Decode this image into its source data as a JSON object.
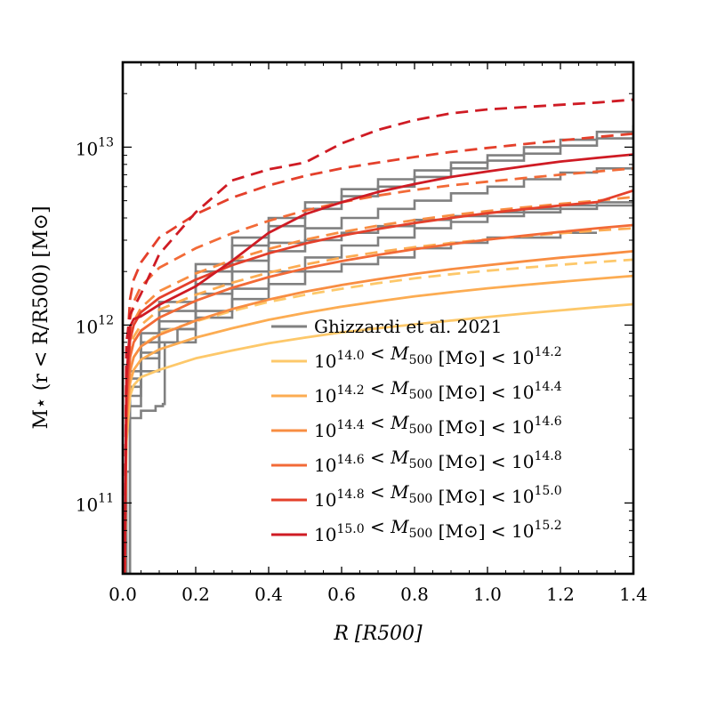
{
  "chart_data": {
    "type": "line",
    "title": "",
    "xlabel": "R [R500]",
    "ylabel": "M⋆ (r < R/R500) [M⊙]",
    "xlim": [
      0.0,
      1.4
    ],
    "ylim": [
      40000000000.0,
      30000000000000.0
    ],
    "yscale": "log",
    "legend_position": "lower-right",
    "x_ticks": [
      "0.0",
      "0.2",
      "0.4",
      "0.6",
      "0.8",
      "1.0",
      "1.2",
      "1.4"
    ],
    "y_ticks": [
      {
        "base": "10",
        "exp": "11",
        "value": 100000000000.0
      },
      {
        "base": "10",
        "exp": "12",
        "value": 1000000000000.0
      },
      {
        "base": "10",
        "exp": "13",
        "value": 10000000000000.0
      }
    ],
    "legend": [
      {
        "label": "Ghizzardi et al. 2021",
        "color": "#808080"
      },
      {
        "label": "10^14.0 < M500 [M⊙] < 10^14.2",
        "color": "#fdc86a"
      },
      {
        "label": "10^14.2 < M500 [M⊙] < 10^14.4",
        "color": "#fcac52"
      },
      {
        "label": "10^14.4 < M500 [M⊙] < 10^14.6",
        "color": "#f88d42"
      },
      {
        "label": "10^14.6 < M500 [M⊙] < 10^14.8",
        "color": "#f26a37"
      },
      {
        "label": "10^14.8 < M500 [M⊙] < 10^15.0",
        "color": "#e4402b"
      },
      {
        "label": "10^15.0 < M500 [M⊙] < 10^15.2",
        "color": "#cf1b24"
      }
    ],
    "x_grid": [
      0.005,
      0.01,
      0.02,
      0.03,
      0.05,
      0.1,
      0.2,
      0.3,
      0.4,
      0.5,
      0.6,
      0.7,
      0.8,
      0.9,
      1.0,
      1.1,
      1.2,
      1.3,
      1.4
    ],
    "series": [
      {
        "name": "10^14.0 < M500 < 10^14.2 (solid)",
        "color": "#fdc86a",
        "style": "solid",
        "values": [
          40000000000.0,
          220000000000.0,
          400000000000.0,
          460000000000.0,
          510000000000.0,
          560000000000.0,
          650000000000.0,
          720000000000.0,
          790000000000.0,
          850000000000.0,
          910000000000.0,
          960000000000.0,
          1010000000000.0,
          1060000000000.0,
          1110000000000.0,
          1160000000000.0,
          1210000000000.0,
          1260000000000.0,
          1310000000000.0
        ]
      },
      {
        "name": "10^14.0 < M500 < 10^14.2 (dashed)",
        "color": "#fdc86a",
        "style": "dashed",
        "values": [
          40000000000.0,
          300000000000.0,
          560000000000.0,
          660000000000.0,
          760000000000.0,
          900000000000.0,
          1050000000000.0,
          1200000000000.0,
          1350000000000.0,
          1480000000000.0,
          1600000000000.0,
          1720000000000.0,
          1830000000000.0,
          1930000000000.0,
          2020000000000.0,
          2100000000000.0,
          2180000000000.0,
          2260000000000.0,
          2330000000000.0
        ]
      },
      {
        "name": "10^14.2 < M500 < 10^14.4 (solid)",
        "color": "#fcac52",
        "style": "solid",
        "values": [
          40000000000.0,
          250000000000.0,
          470000000000.0,
          560000000000.0,
          640000000000.0,
          730000000000.0,
          850000000000.0,
          960000000000.0,
          1070000000000.0,
          1170000000000.0,
          1270000000000.0,
          1360000000000.0,
          1450000000000.0,
          1530000000000.0,
          1610000000000.0,
          1680000000000.0,
          1750000000000.0,
          1820000000000.0,
          1890000000000.0
        ]
      },
      {
        "name": "10^14.2 < M500 < 10^14.4 (dashed)",
        "color": "#fcac52",
        "style": "dashed",
        "values": [
          40000000000.0,
          360000000000.0,
          720000000000.0,
          860000000000.0,
          1000000000000.0,
          1220000000000.0,
          1480000000000.0,
          1730000000000.0,
          1970000000000.0,
          2190000000000.0,
          2390000000000.0,
          2570000000000.0,
          2740000000000.0,
          2890000000000.0,
          3030000000000.0,
          3160000000000.0,
          3280000000000.0,
          3400000000000.0,
          3500000000000.0
        ]
      },
      {
        "name": "10^14.4 < M500 < 10^14.6 (solid)",
        "color": "#f88d42",
        "style": "solid",
        "values": [
          40000000000.0,
          280000000000.0,
          550000000000.0,
          660000000000.0,
          760000000000.0,
          880000000000.0,
          1060000000000.0,
          1230000000000.0,
          1390000000000.0,
          1540000000000.0,
          1680000000000.0,
          1810000000000.0,
          1940000000000.0,
          2060000000000.0,
          2170000000000.0,
          2280000000000.0,
          2390000000000.0,
          2490000000000.0,
          2600000000000.0
        ]
      },
      {
        "name": "10^14.4 < M500 < 10^14.6 (dashed)",
        "color": "#f88d42",
        "style": "dashed",
        "values": [
          40000000000.0,
          420000000000.0,
          860000000000.0,
          1050000000000.0,
          1250000000000.0,
          1550000000000.0,
          1950000000000.0,
          2320000000000.0,
          2680000000000.0,
          3020000000000.0,
          3330000000000.0,
          3620000000000.0,
          3890000000000.0,
          4140000000000.0,
          4370000000000.0,
          4590000000000.0,
          4800000000000.0,
          5000000000000.0,
          5250000000000.0
        ]
      },
      {
        "name": "10^14.6 < M500 < 10^14.8 (solid)",
        "color": "#f26a37",
        "style": "solid",
        "values": [
          40000000000.0,
          320000000000.0,
          660000000000.0,
          800000000000.0,
          930000000000.0,
          1100000000000.0,
          1370000000000.0,
          1620000000000.0,
          1860000000000.0,
          2080000000000.0,
          2290000000000.0,
          2480000000000.0,
          2670000000000.0,
          2850000000000.0,
          3020000000000.0,
          3180000000000.0,
          3340000000000.0,
          3500000000000.0,
          3650000000000.0
        ]
      },
      {
        "name": "10^14.6 < M500 < 10^14.8 (dashed)",
        "color": "#f26a37",
        "style": "dashed",
        "values": [
          40000000000.0,
          520000000000.0,
          1080000000000.0,
          1350000000000.0,
          1650000000000.0,
          2100000000000.0,
          2700000000000.0,
          3280000000000.0,
          3850000000000.0,
          4400000000000.0,
          4900000000000.0,
          5350000000000.0,
          5750000000000.0,
          6100000000000.0,
          6400000000000.0,
          6700000000000.0,
          7000000000000.0,
          7300000000000.0,
          7600000000000.0
        ]
      },
      {
        "name": "10^14.8 < M500 < 10^15.0 (solid)",
        "color": "#e4402b",
        "style": "solid",
        "values": [
          40000000000.0,
          400000000000.0,
          820000000000.0,
          1000000000000.0,
          1180000000000.0,
          1420000000000.0,
          1800000000000.0,
          2170000000000.0,
          2530000000000.0,
          2870000000000.0,
          3180000000000.0,
          3470000000000.0,
          3740000000000.0,
          4000000000000.0,
          4250000000000.0,
          4480000000000.0,
          4700000000000.0,
          4910000000000.0,
          5700000000000.0
        ]
      },
      {
        "name": "10^14.8 < M500 < 10^15.0 (dashed)",
        "color": "#e4402b",
        "style": "dashed",
        "values": [
          40000000000.0,
          650000000000.0,
          1400000000000.0,
          1800000000000.0,
          2250000000000.0,
          3100000000000.0,
          4200000000000.0,
          5200000000000.0,
          6100000000000.0,
          6900000000000.0,
          7600000000000.0,
          8200000000000.0,
          8800000000000.0,
          9400000000000.0,
          9900000000000.0,
          10400000000000.0,
          10900000000000.0,
          11400000000000.0,
          11900000000000.0
        ]
      },
      {
        "name": "10^15.0 < M500 < 10^15.2 (solid)",
        "color": "#cf1b24",
        "style": "solid",
        "values": [
          40000000000.0,
          500000000000.0,
          980000000000.0,
          1080000000000.0,
          1120000000000.0,
          1300000000000.0,
          1650000000000.0,
          2300000000000.0,
          3300000000000.0,
          4200000000000.0,
          4900000000000.0,
          5600000000000.0,
          6200000000000.0,
          6800000000000.0,
          7300000000000.0,
          7800000000000.0,
          8300000000000.0,
          8700000000000.0,
          9100000000000.0
        ]
      },
      {
        "name": "10^15.0 < M500 < 10^15.2 (dashed)",
        "color": "#cf1b24",
        "style": "dashed",
        "values": [
          40000000000.0,
          800000000000.0,
          1150000000000.0,
          1250000000000.0,
          1500000000000.0,
          2500000000000.0,
          4300000000000.0,
          6500000000000.0,
          7500000000000.0,
          8200000000000.0,
          10500000000000.0,
          12500000000000.0,
          14200000000000.0,
          15500000000000.0,
          16300000000000.0,
          16800000000000.0,
          17300000000000.0,
          17800000000000.0,
          18500000000000.0
        ]
      }
    ],
    "observed_profiles": [
      {
        "name": "Ghizzardi et al. 2021 profile 1",
        "color": "#808080",
        "style": "step",
        "points": [
          [
            0.005,
            40000000000.0
          ],
          [
            0.01,
            150000000000.0
          ],
          [
            0.02,
            300000000000.0
          ],
          [
            0.05,
            330000000000.0
          ],
          [
            0.09,
            350000000000.0
          ],
          [
            0.11,
            360000000000.0
          ],
          [
            0.115,
            800000000000.0
          ],
          [
            0.15,
            950000000000.0
          ],
          [
            0.2,
            1100000000000.0
          ],
          [
            0.3,
            1400000000000.0
          ],
          [
            0.4,
            1700000000000.0
          ],
          [
            0.5,
            2000000000000.0
          ],
          [
            0.6,
            2200000000000.0
          ],
          [
            0.7,
            2400000000000.0
          ],
          [
            0.8,
            2700000000000.0
          ],
          [
            0.9,
            2900000000000.0
          ],
          [
            1.0,
            3100000000000.0
          ],
          [
            1.2,
            3300000000000.0
          ],
          [
            1.3,
            3300000000000.0
          ]
        ]
      },
      {
        "name": "Ghizzardi et al. 2021 profile 2",
        "color": "#808080",
        "style": "step",
        "points": [
          [
            0.005,
            40000000000.0
          ],
          [
            0.02,
            350000000000.0
          ],
          [
            0.05,
            550000000000.0
          ],
          [
            0.1,
            800000000000.0
          ],
          [
            0.2,
            1200000000000.0
          ],
          [
            0.3,
            1600000000000.0
          ],
          [
            0.4,
            2000000000000.0
          ],
          [
            0.5,
            2400000000000.0
          ],
          [
            0.6,
            2800000000000.0
          ],
          [
            0.7,
            3100000000000.0
          ],
          [
            0.8,
            3500000000000.0
          ],
          [
            0.9,
            3800000000000.0
          ],
          [
            1.0,
            4100000000000.0
          ],
          [
            1.1,
            4300000000000.0
          ],
          [
            1.2,
            4500000000000.0
          ],
          [
            1.3,
            4700000000000.0
          ],
          [
            1.4,
            4900000000000.0
          ]
        ]
      },
      {
        "name": "Ghizzardi et al. 2021 profile 3",
        "color": "#808080",
        "style": "step",
        "points": [
          [
            0.005,
            40000000000.0
          ],
          [
            0.02,
            400000000000.0
          ],
          [
            0.05,
            650000000000.0
          ],
          [
            0.1,
            950000000000.0
          ],
          [
            0.2,
            1500000000000.0
          ],
          [
            0.3,
            2000000000000.0
          ],
          [
            0.4,
            2600000000000.0
          ],
          [
            0.5,
            3000000000000.0
          ],
          [
            0.6,
            3300000000000.0
          ],
          [
            0.7,
            3600000000000.0
          ],
          [
            0.8,
            3900000000000.0
          ],
          [
            0.9,
            4100000000000.0
          ],
          [
            1.0,
            4300000000000.0
          ],
          [
            1.1,
            4500000000000.0
          ],
          [
            1.2,
            4700000000000.0
          ],
          [
            1.3,
            4900000000000.0
          ],
          [
            1.4,
            5200000000000.0
          ]
        ]
      },
      {
        "name": "Ghizzardi et al. 2021 profile 4",
        "color": "#808080",
        "style": "step",
        "points": [
          [
            0.005,
            40000000000.0
          ],
          [
            0.02,
            450000000000.0
          ],
          [
            0.05,
            700000000000.0
          ],
          [
            0.1,
            1050000000000.0
          ],
          [
            0.2,
            1700000000000.0
          ],
          [
            0.3,
            2300000000000.0
          ],
          [
            0.4,
            2900000000000.0
          ],
          [
            0.5,
            3500000000000.0
          ],
          [
            0.6,
            4000000000000.0
          ],
          [
            0.7,
            4500000000000.0
          ],
          [
            0.8,
            5000000000000.0
          ],
          [
            0.9,
            5500000000000.0
          ],
          [
            1.0,
            6000000000000.0
          ],
          [
            1.1,
            6600000000000.0
          ],
          [
            1.2,
            7200000000000.0
          ],
          [
            1.3,
            7600000000000.0
          ],
          [
            1.4,
            8000000000000.0
          ]
        ]
      },
      {
        "name": "Ghizzardi et al. 2021 profile 5",
        "color": "#808080",
        "style": "step",
        "points": [
          [
            0.005,
            40000000000.0
          ],
          [
            0.02,
            500000000000.0
          ],
          [
            0.05,
            800000000000.0
          ],
          [
            0.1,
            1200000000000.0
          ],
          [
            0.2,
            2000000000000.0
          ],
          [
            0.3,
            2800000000000.0
          ],
          [
            0.4,
            3600000000000.0
          ],
          [
            0.5,
            4500000000000.0
          ],
          [
            0.6,
            5300000000000.0
          ],
          [
            0.7,
            6000000000000.0
          ],
          [
            0.8,
            6800000000000.0
          ],
          [
            0.9,
            7600000000000.0
          ],
          [
            1.0,
            8400000000000.0
          ],
          [
            1.1,
            9200000000000.0
          ],
          [
            1.2,
            10200000000000.0
          ],
          [
            1.3,
            11200000000000.0
          ],
          [
            1.4,
            12200000000000.0
          ]
        ]
      },
      {
        "name": "Ghizzardi et al. 2021 profile 6",
        "color": "#808080",
        "style": "step",
        "points": [
          [
            0.005,
            40000000000.0
          ],
          [
            0.02,
            550000000000.0
          ],
          [
            0.05,
            900000000000.0
          ],
          [
            0.1,
            1350000000000.0
          ],
          [
            0.2,
            2200000000000.0
          ],
          [
            0.3,
            3100000000000.0
          ],
          [
            0.4,
            4000000000000.0
          ],
          [
            0.5,
            4900000000000.0
          ],
          [
            0.6,
            5800000000000.0
          ],
          [
            0.7,
            6600000000000.0
          ],
          [
            0.8,
            7400000000000.0
          ],
          [
            0.9,
            8200000000000.0
          ],
          [
            1.0,
            9000000000000.0
          ],
          [
            1.1,
            10000000000000.0
          ],
          [
            1.2,
            11000000000000.0
          ],
          [
            1.3,
            12200000000000.0
          ],
          [
            1.4,
            13300000000000.0
          ]
        ]
      }
    ]
  }
}
